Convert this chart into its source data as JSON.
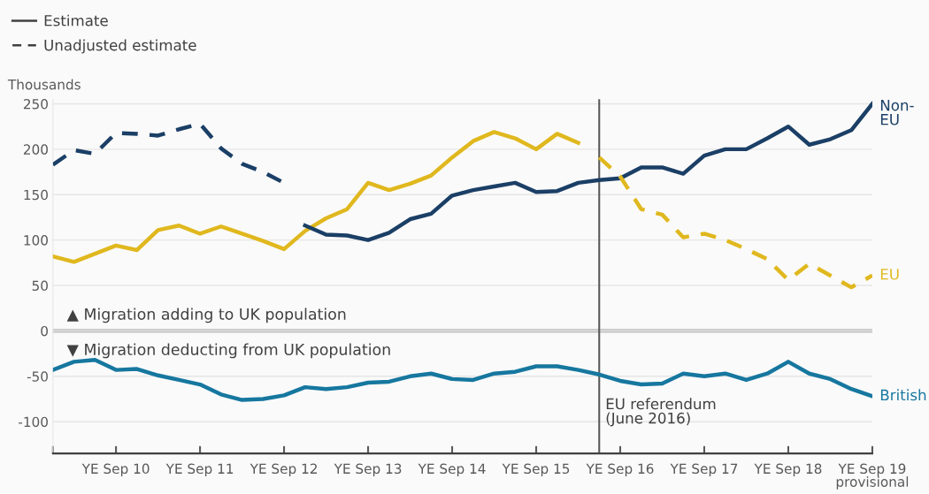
{
  "chart_data": {
    "type": "line",
    "ylabel": "Thousands",
    "x": [
      "2009-12",
      "2010-03",
      "2010-06",
      "2010-09",
      "2010-12",
      "2011-03",
      "2011-06",
      "2011-09",
      "2011-12",
      "2012-03",
      "2012-06",
      "2012-09",
      "2012-12",
      "2013-03",
      "2013-06",
      "2013-09",
      "2013-12",
      "2014-03",
      "2014-06",
      "2014-09",
      "2014-12",
      "2015-03",
      "2015-06",
      "2015-09",
      "2015-12",
      "2016-03",
      "2016-06",
      "2016-09",
      "2016-12",
      "2017-03",
      "2017-06",
      "2017-09",
      "2017-12",
      "2018-03",
      "2018-06",
      "2018-09",
      "2018-12",
      "2019-03",
      "2019-06",
      "2019-09"
    ],
    "series": [
      {
        "color": "#e0b81e",
        "line_style": "solid",
        "values": [
          82,
          76,
          85,
          94,
          89,
          111,
          116,
          107,
          115,
          107,
          99,
          90,
          110,
          124,
          134,
          163,
          155,
          162,
          171,
          191,
          209,
          219,
          212,
          200,
          217,
          207,
          null,
          null,
          null,
          null,
          null,
          null,
          null,
          null,
          null,
          null,
          null,
          null,
          null,
          null
        ]
      },
      {
        "color": "#1b3f66",
        "line_style": "dashed",
        "values": [
          183,
          199,
          195,
          218,
          217,
          215,
          222,
          228,
          201,
          184,
          175,
          163,
          null,
          null,
          null,
          null,
          null,
          null,
          null,
          null,
          null,
          null,
          null,
          null,
          null,
          null,
          null,
          null,
          null,
          null,
          null,
          null,
          null,
          null,
          null,
          null,
          null,
          null,
          null,
          null
        ]
      },
      {
        "name": "Non-EU",
        "color": "#1b3f66",
        "line_style": "solid",
        "values": [
          null,
          null,
          null,
          null,
          null,
          null,
          null,
          null,
          null,
          null,
          null,
          null,
          116,
          106,
          105,
          100,
          108,
          123,
          129,
          149,
          155,
          159,
          163,
          153,
          154,
          163,
          166,
          168,
          180,
          180,
          173,
          193,
          200,
          200,
          212,
          225,
          205,
          211,
          221,
          250
        ]
      },
      {
        "name": "EU",
        "color": "#e0b81e",
        "line_style": "dashed",
        "values": [
          null,
          null,
          null,
          null,
          null,
          null,
          null,
          null,
          null,
          null,
          null,
          null,
          null,
          null,
          null,
          null,
          null,
          null,
          null,
          null,
          null,
          null,
          null,
          null,
          null,
          null,
          191,
          170,
          134,
          128,
          103,
          107,
          100,
          90,
          79,
          56,
          74,
          61,
          48,
          61
        ]
      },
      {
        "name": "British",
        "color": "#16779f",
        "line_style": "solid",
        "values": [
          -43,
          -34,
          -32,
          -43,
          -42,
          -49,
          -54,
          -59,
          -70,
          -76,
          -75,
          -71,
          -62,
          -64,
          -62,
          -57,
          -56,
          -50,
          -47,
          -53,
          -54,
          -47,
          -45,
          -39,
          -39,
          -43,
          -48,
          -55,
          -59,
          -58,
          -47,
          -50,
          -47,
          -54,
          -47,
          -34,
          -47,
          -53,
          -64,
          -72
        ]
      }
    ],
    "xlim": [
      "2009-12",
      "2019-09"
    ],
    "xticks": [
      {
        "value": "2009-12",
        "label": null
      },
      {
        "value": "2010-09",
        "label": "YE Sep 10"
      },
      {
        "value": "2011-09",
        "label": "YE Sep 11"
      },
      {
        "value": "2012-09",
        "label": "YE Sep 12"
      },
      {
        "value": "2013-09",
        "label": "YE Sep 13"
      },
      {
        "value": "2014-09",
        "label": "YE Sep 14"
      },
      {
        "value": "2015-09",
        "label": "YE Sep 15"
      },
      {
        "value": "2016-09",
        "label": "YE Sep 16"
      },
      {
        "value": "2017-09",
        "label": "YE Sep 17"
      },
      {
        "value": "2018-09",
        "label": "YE Sep 18"
      },
      {
        "value": "2019-09",
        "label": "YE Sep 19\nprovisional"
      }
    ],
    "ylim": [
      -135,
      255
    ],
    "yticks": [
      -100,
      -50,
      0,
      50,
      100,
      150,
      200,
      250
    ],
    "grid": "y",
    "legend": "right",
    "ref_lines": [
      {
        "axis": "x",
        "value": "2016-06",
        "label": "EU referendum\n(June 2016)",
        "color": "#595959"
      },
      {
        "axis": "y",
        "value": 0,
        "color": "#bfbfbf"
      }
    ],
    "annotations": [
      "Estimate",
      "Unadjusted estimate",
      "▲ Migration adding to UK population",
      "▼ Migration deducting from UK population"
    ]
  }
}
